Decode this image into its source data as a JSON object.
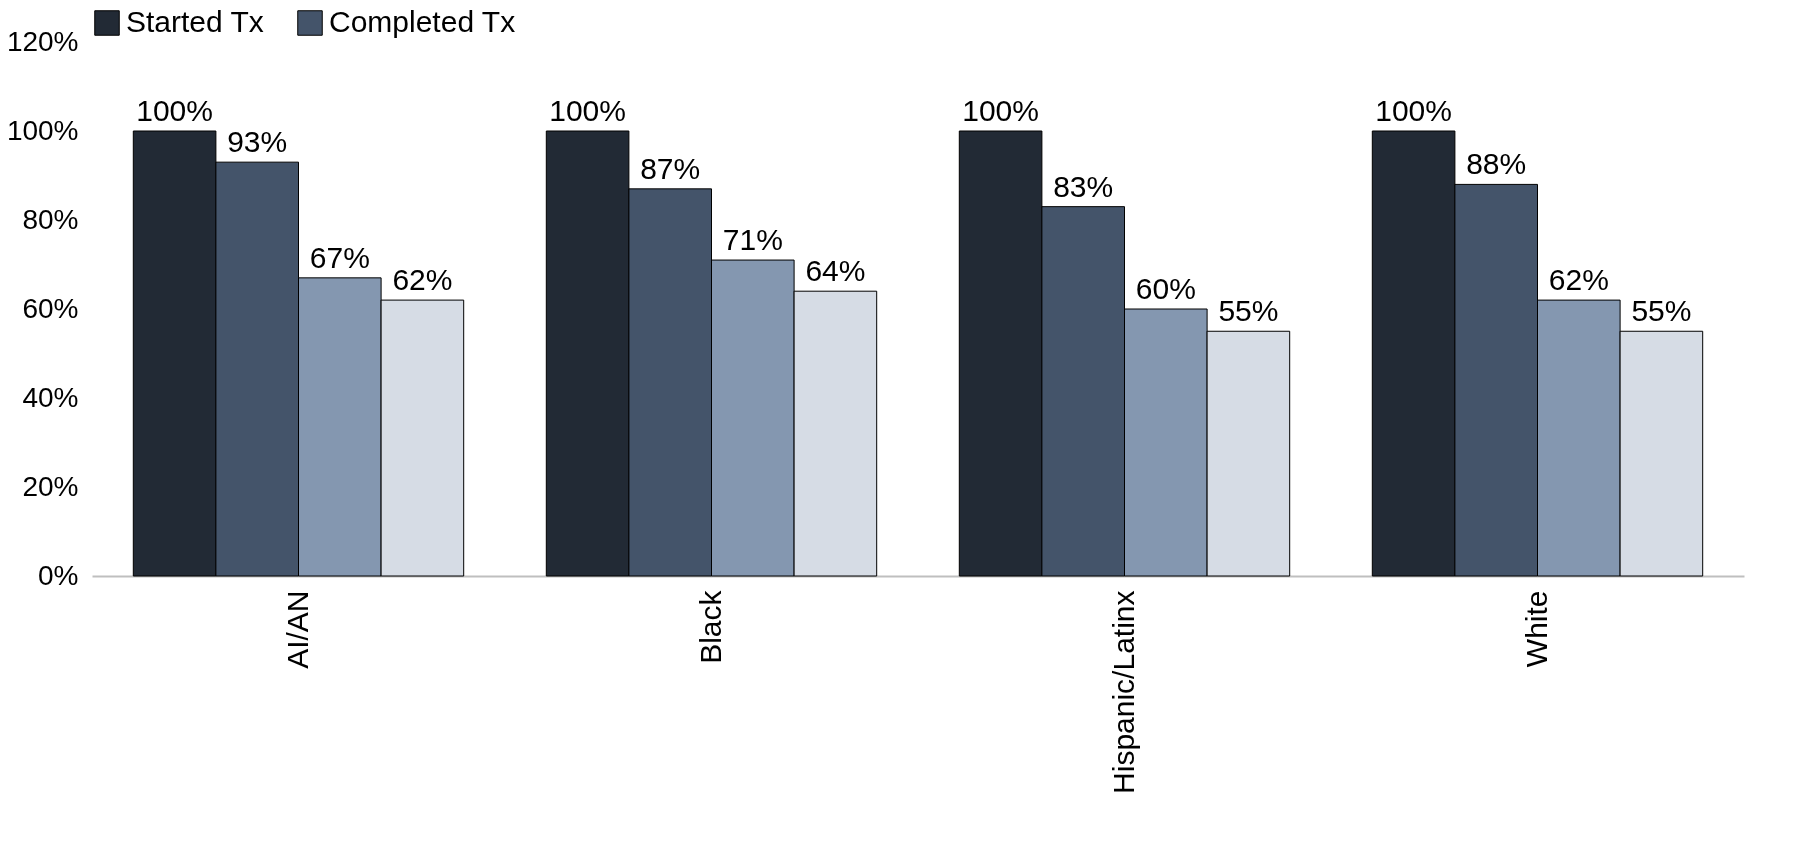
{
  "chart_data": {
    "type": "bar",
    "categories": [
      "AI/AN",
      "Black",
      "Hispanic/Latinx",
      "White"
    ],
    "series": [
      {
        "name": "Started Tx",
        "color": "#222a35",
        "values": [
          100,
          100,
          100,
          100
        ],
        "value_labels": [
          "100%",
          "100%",
          "100%",
          "100%"
        ]
      },
      {
        "name": "Completed Tx",
        "color": "#44546a",
        "values": [
          93,
          87,
          83,
          88
        ],
        "value_labels": [
          "93%",
          "87%",
          "83%",
          "88%"
        ]
      },
      {
        "color": "#8497b0",
        "values": [
          67,
          71,
          60,
          62
        ],
        "value_labels": [
          "67%",
          "71%",
          "60%",
          "62%"
        ]
      },
      {
        "color": "#d6dce5",
        "values": [
          62,
          64,
          55,
          55
        ],
        "value_labels": [
          "62%",
          "64%",
          "55%",
          "55%"
        ]
      }
    ],
    "ylim": [
      0,
      120
    ],
    "yticks": [
      {
        "value": 0,
        "label": "0%"
      },
      {
        "value": 20,
        "label": "20%"
      },
      {
        "value": 40,
        "label": "40%"
      },
      {
        "value": 60,
        "label": "60%"
      },
      {
        "value": 80,
        "label": "80%"
      },
      {
        "value": 100,
        "label": "100%"
      },
      {
        "value": 120,
        "label": "120%"
      }
    ],
    "grid": false,
    "legend": "top"
  }
}
